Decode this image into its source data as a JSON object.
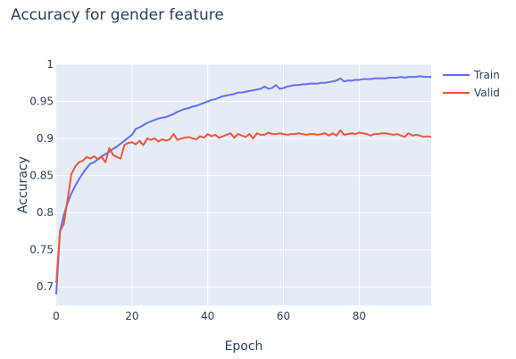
{
  "chart_data": {
    "type": "line",
    "title": "Accuracy for gender feature",
    "xlabel": "Epoch",
    "ylabel": "Accuracy",
    "xlim": [
      0,
      99
    ],
    "ylim": [
      0.675,
      1.0
    ],
    "xticks": [
      0,
      20,
      40,
      60,
      80
    ],
    "xtick_labels": [
      "0",
      "20",
      "40",
      "60",
      "80"
    ],
    "yticks": [
      0.7,
      0.75,
      0.8,
      0.85,
      0.9,
      0.95,
      1.0
    ],
    "ytick_labels": [
      "0.7",
      "0.75",
      "0.8",
      "0.85",
      "0.9",
      "0.95",
      "1"
    ],
    "grid": true,
    "legend_position": "top-right",
    "series": [
      {
        "name": "Train",
        "color": "#636efa",
        "x": [
          0,
          1,
          2,
          3,
          4,
          5,
          6,
          7,
          8,
          9,
          10,
          11,
          12,
          13,
          14,
          15,
          16,
          17,
          18,
          19,
          20,
          21,
          22,
          23,
          24,
          25,
          26,
          27,
          28,
          29,
          30,
          31,
          32,
          33,
          34,
          35,
          36,
          37,
          38,
          39,
          40,
          41,
          42,
          43,
          44,
          45,
          46,
          47,
          48,
          49,
          50,
          51,
          52,
          53,
          54,
          55,
          56,
          57,
          58,
          59,
          60,
          61,
          62,
          63,
          64,
          65,
          66,
          67,
          68,
          69,
          70,
          71,
          72,
          73,
          74,
          75,
          76,
          77,
          78,
          79,
          80,
          81,
          82,
          83,
          84,
          85,
          86,
          87,
          88,
          89,
          90,
          91,
          92,
          93,
          94,
          95,
          96,
          97,
          98,
          99
        ],
        "values": [
          0.69,
          0.775,
          0.797,
          0.813,
          0.826,
          0.836,
          0.845,
          0.853,
          0.86,
          0.866,
          0.868,
          0.872,
          0.876,
          0.879,
          0.882,
          0.886,
          0.889,
          0.893,
          0.897,
          0.901,
          0.905,
          0.913,
          0.915,
          0.918,
          0.921,
          0.923,
          0.925,
          0.927,
          0.928,
          0.929,
          0.931,
          0.933,
          0.936,
          0.938,
          0.94,
          0.941,
          0.943,
          0.944,
          0.946,
          0.948,
          0.95,
          0.952,
          0.953,
          0.955,
          0.957,
          0.958,
          0.959,
          0.96,
          0.962,
          0.962,
          0.963,
          0.964,
          0.965,
          0.966,
          0.967,
          0.97,
          0.967,
          0.968,
          0.972,
          0.967,
          0.968,
          0.97,
          0.971,
          0.972,
          0.972,
          0.973,
          0.973,
          0.974,
          0.974,
          0.974,
          0.975,
          0.975,
          0.976,
          0.977,
          0.978,
          0.981,
          0.977,
          0.978,
          0.978,
          0.979,
          0.979,
          0.98,
          0.98,
          0.98,
          0.981,
          0.981,
          0.981,
          0.981,
          0.982,
          0.982,
          0.982,
          0.983,
          0.982,
          0.983,
          0.983,
          0.983,
          0.984,
          0.983,
          0.983,
          0.983
        ]
      },
      {
        "name": "Valid",
        "color": "#ef553b",
        "x": [
          0,
          1,
          2,
          3,
          4,
          5,
          6,
          7,
          8,
          9,
          10,
          11,
          12,
          13,
          14,
          15,
          16,
          17,
          18,
          19,
          20,
          21,
          22,
          23,
          24,
          25,
          26,
          27,
          28,
          29,
          30,
          31,
          32,
          33,
          34,
          35,
          36,
          37,
          38,
          39,
          40,
          41,
          42,
          43,
          44,
          45,
          46,
          47,
          48,
          49,
          50,
          51,
          52,
          53,
          54,
          55,
          56,
          57,
          58,
          59,
          60,
          61,
          62,
          63,
          64,
          65,
          66,
          67,
          68,
          69,
          70,
          71,
          72,
          73,
          74,
          75,
          76,
          77,
          78,
          79,
          80,
          81,
          82,
          83,
          84,
          85,
          86,
          87,
          88,
          89,
          90,
          91,
          92,
          93,
          94,
          95,
          96,
          97,
          98,
          99
        ],
        "values": [
          0.705,
          0.775,
          0.785,
          0.818,
          0.852,
          0.862,
          0.868,
          0.87,
          0.875,
          0.873,
          0.876,
          0.872,
          0.875,
          0.868,
          0.887,
          0.878,
          0.875,
          0.873,
          0.891,
          0.894,
          0.895,
          0.892,
          0.897,
          0.891,
          0.9,
          0.898,
          0.9,
          0.896,
          0.899,
          0.897,
          0.899,
          0.906,
          0.898,
          0.9,
          0.901,
          0.902,
          0.9,
          0.899,
          0.903,
          0.901,
          0.906,
          0.903,
          0.905,
          0.901,
          0.903,
          0.905,
          0.907,
          0.901,
          0.906,
          0.904,
          0.902,
          0.906,
          0.9,
          0.907,
          0.905,
          0.905,
          0.908,
          0.906,
          0.906,
          0.907,
          0.906,
          0.905,
          0.906,
          0.906,
          0.907,
          0.906,
          0.905,
          0.906,
          0.906,
          0.905,
          0.906,
          0.907,
          0.904,
          0.907,
          0.904,
          0.911,
          0.905,
          0.906,
          0.907,
          0.906,
          0.908,
          0.907,
          0.906,
          0.904,
          0.906,
          0.906,
          0.907,
          0.907,
          0.906,
          0.905,
          0.906,
          0.904,
          0.902,
          0.907,
          0.904,
          0.905,
          0.904,
          0.902,
          0.903,
          0.902
        ]
      }
    ]
  }
}
